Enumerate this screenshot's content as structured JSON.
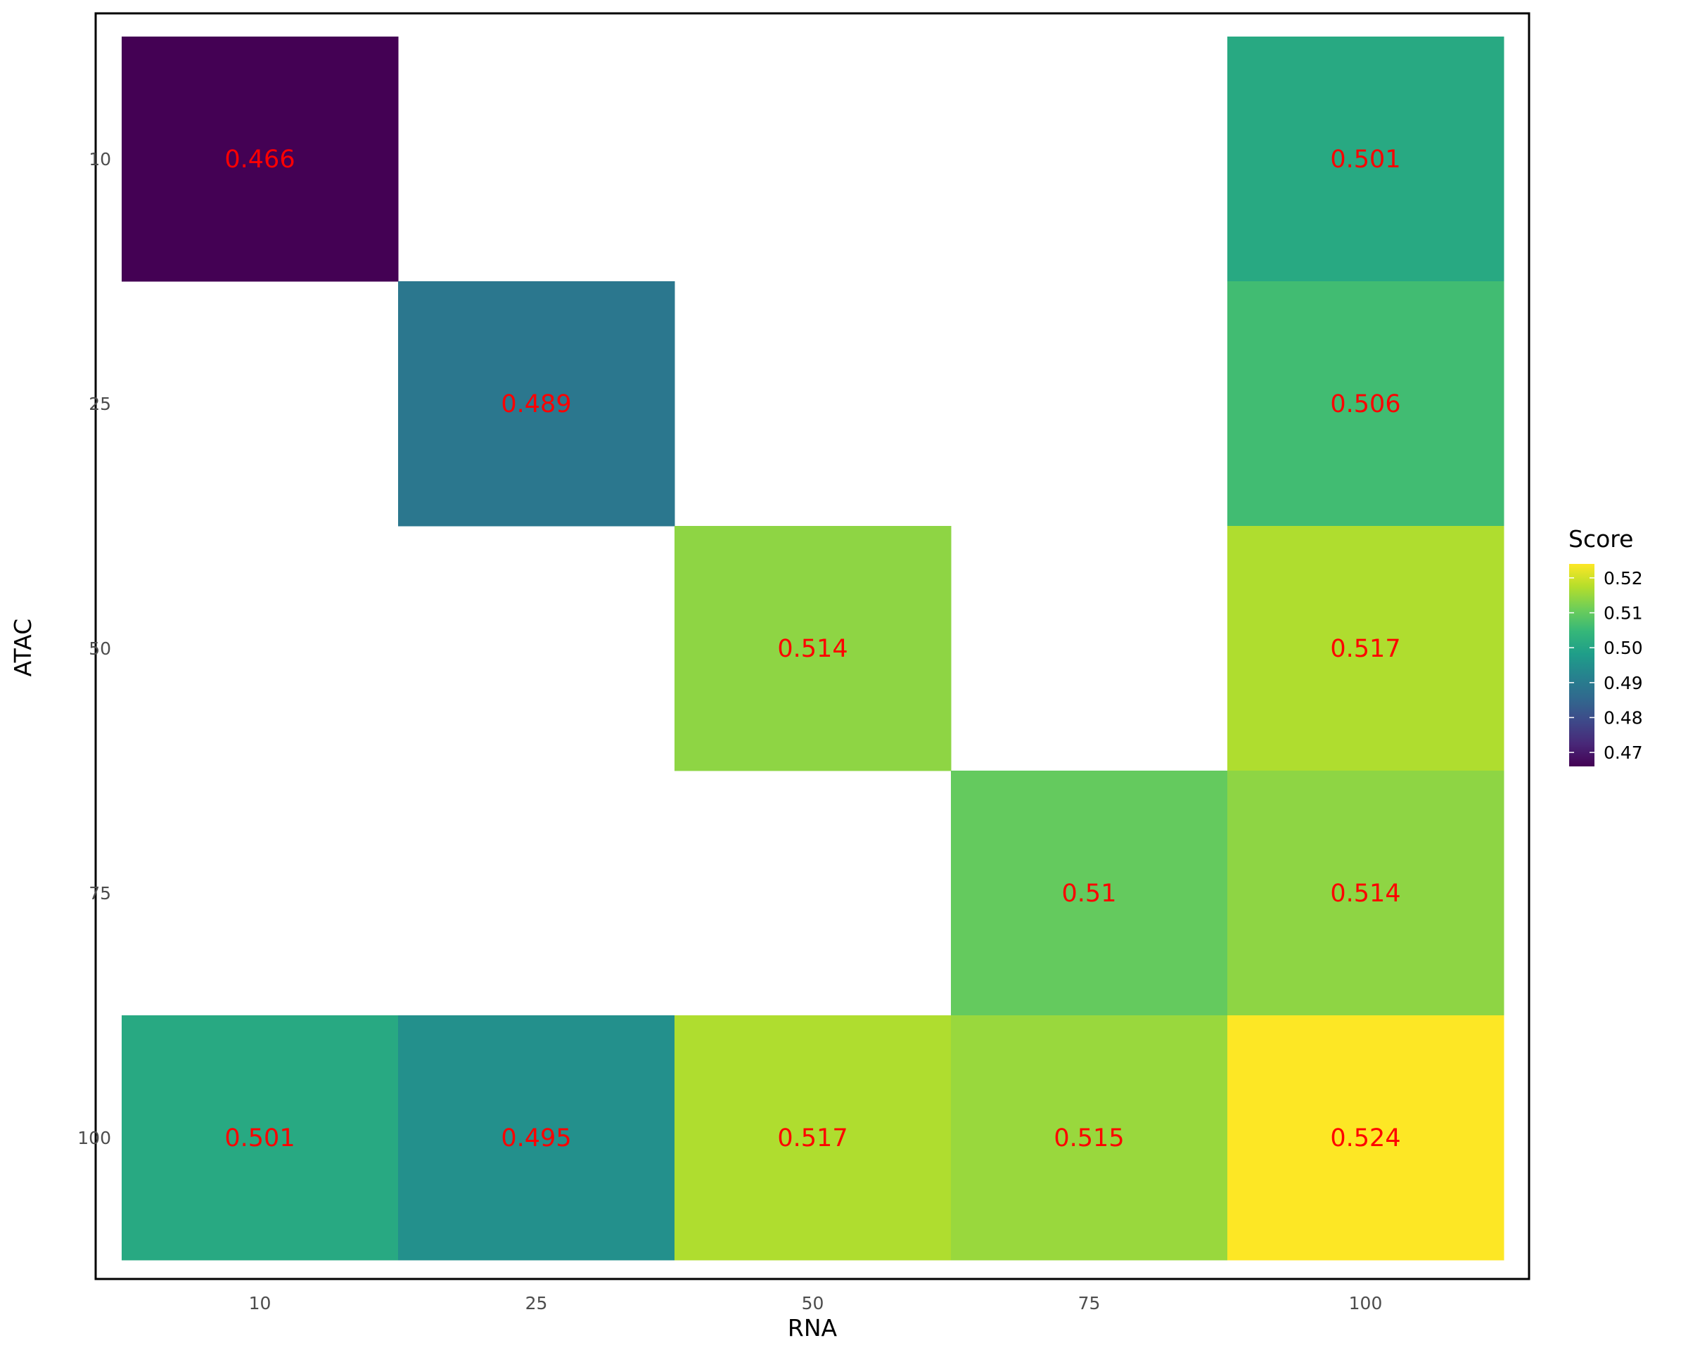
{
  "chart_data": {
    "type": "heatmap",
    "title": "",
    "xlabel": "RNA",
    "ylabel": "ATAC",
    "x_categories": [
      "10",
      "25",
      "50",
      "75",
      "100"
    ],
    "y_categories": [
      "10",
      "25",
      "50",
      "75",
      "100"
    ],
    "cells": [
      {
        "x": "10",
        "y": "10",
        "value": 0.466,
        "label": "0.466"
      },
      {
        "x": "100",
        "y": "10",
        "value": 0.501,
        "label": "0.501"
      },
      {
        "x": "25",
        "y": "25",
        "value": 0.489,
        "label": "0.489"
      },
      {
        "x": "100",
        "y": "25",
        "value": 0.506,
        "label": "0.506"
      },
      {
        "x": "50",
        "y": "50",
        "value": 0.514,
        "label": "0.514"
      },
      {
        "x": "100",
        "y": "50",
        "value": 0.517,
        "label": "0.517"
      },
      {
        "x": "75",
        "y": "75",
        "value": 0.51,
        "label": "0.51"
      },
      {
        "x": "100",
        "y": "75",
        "value": 0.514,
        "label": "0.514"
      },
      {
        "x": "10",
        "y": "100",
        "value": 0.501,
        "label": "0.501"
      },
      {
        "x": "25",
        "y": "100",
        "value": 0.495,
        "label": "0.495"
      },
      {
        "x": "50",
        "y": "100",
        "value": 0.517,
        "label": "0.517"
      },
      {
        "x": "75",
        "y": "100",
        "value": 0.515,
        "label": "0.515"
      },
      {
        "x": "100",
        "y": "100",
        "value": 0.524,
        "label": "0.524"
      }
    ],
    "legend": {
      "title": "Score",
      "position": "right",
      "colormap": "viridis",
      "range": [
        0.466,
        0.524
      ],
      "ticks": [
        0.47,
        0.48,
        0.49,
        0.5,
        0.51,
        0.52
      ],
      "tick_labels": [
        "0.47",
        "0.48",
        "0.49",
        "0.50",
        "0.51",
        "0.52"
      ]
    },
    "label_color": "#ff0000",
    "panel_border": true,
    "grid": false
  }
}
